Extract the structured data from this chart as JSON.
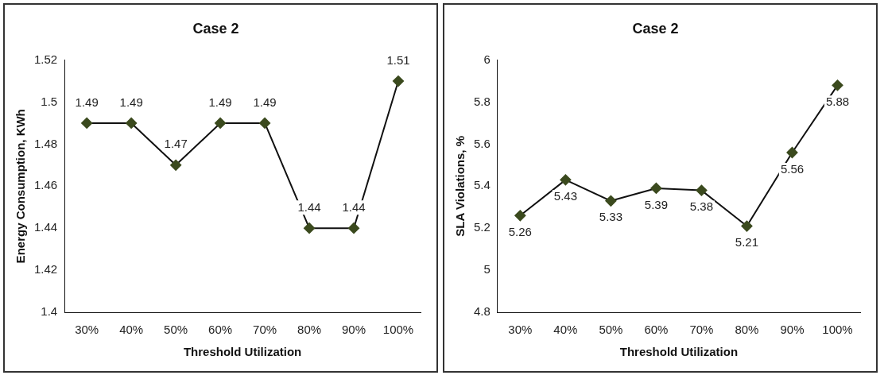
{
  "chart_data": [
    {
      "type": "line",
      "title": "Case 2",
      "xlabel": "Threshold Utilization",
      "ylabel": "Energy Consumption, KWh",
      "categories": [
        "30%",
        "40%",
        "50%",
        "60%",
        "70%",
        "80%",
        "90%",
        "100%"
      ],
      "series": [
        {
          "color": "#3b4a1e",
          "values": [
            1.49,
            1.49,
            1.47,
            1.49,
            1.49,
            1.44,
            1.44,
            1.51
          ]
        }
      ],
      "ylim": [
        1.4,
        1.52
      ],
      "yticks": [
        1.4,
        1.42,
        1.44,
        1.46,
        1.48,
        1.5,
        1.52
      ],
      "data_labels": true,
      "marker": "diamond",
      "line_style": "solid",
      "legend": false
    },
    {
      "type": "line",
      "title": "Case 2",
      "xlabel": "Threshold Utilization",
      "ylabel": "SLA Violations, %",
      "categories": [
        "30%",
        "40%",
        "50%",
        "60%",
        "70%",
        "80%",
        "90%",
        "100%"
      ],
      "series": [
        {
          "color": "#3b4a1e",
          "values": [
            5.26,
            5.43,
            5.33,
            5.39,
            5.38,
            5.21,
            5.56,
            5.88
          ]
        }
      ],
      "ylim": [
        4.8,
        6
      ],
      "yticks": [
        4.8,
        5,
        5.2,
        5.4,
        5.6,
        5.8,
        6
      ],
      "data_labels": true,
      "marker": "diamond",
      "line_style": "solid",
      "legend": false
    }
  ]
}
